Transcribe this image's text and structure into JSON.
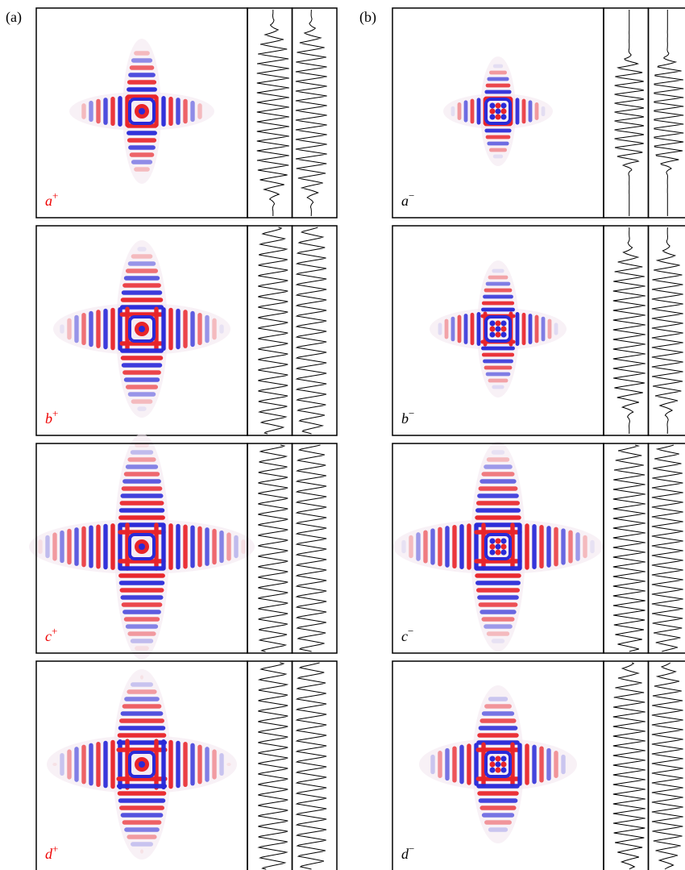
{
  "columns": [
    {
      "label": "(a)",
      "panels": [
        {
          "letter": "a",
          "sign": "+"
        },
        {
          "letter": "b",
          "sign": "+"
        },
        {
          "letter": "c",
          "sign": "+"
        },
        {
          "letter": "d",
          "sign": "+"
        }
      ]
    },
    {
      "label": "(b)",
      "panels": [
        {
          "letter": "a",
          "sign": "−"
        },
        {
          "letter": "b",
          "sign": "−"
        },
        {
          "letter": "c",
          "sign": "−"
        },
        {
          "letter": "d",
          "sign": "−"
        }
      ]
    }
  ]
}
